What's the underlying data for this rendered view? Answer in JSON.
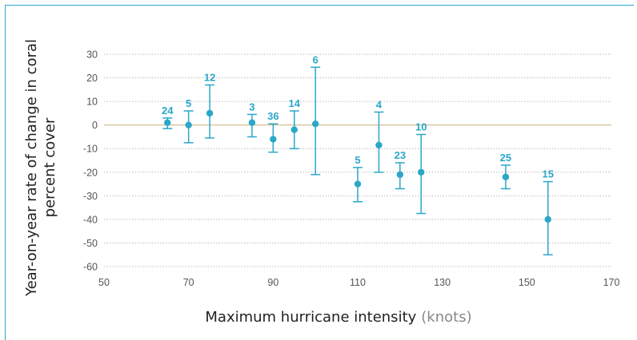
{
  "chart_data": {
    "type": "scatter",
    "xlabel": "Maximum hurricane intensity",
    "xlabel_unit": "(knots)",
    "ylabel_line1": "Year-on-year rate of change in coral",
    "ylabel_line2": "percent cover",
    "xlim": [
      50,
      170
    ],
    "ylim": [
      -60,
      30
    ],
    "x_ticks": [
      50,
      70,
      90,
      110,
      130,
      150,
      170
    ],
    "y_ticks": [
      30,
      20,
      10,
      0,
      -10,
      -20,
      -30,
      -40,
      -50,
      -60
    ],
    "grid": "horizontal dotted",
    "colors": {
      "series": "#2aa7c9",
      "grid": "#bbbbbb",
      "zero_line": "#c9b27a"
    },
    "points": [
      {
        "x": 65,
        "y": 1,
        "low": -1.5,
        "high": 3,
        "n": "24"
      },
      {
        "x": 70,
        "y": 0,
        "low": -7.5,
        "high": 6,
        "n": "5"
      },
      {
        "x": 75,
        "y": 5,
        "low": -5.5,
        "high": 17,
        "n": "12"
      },
      {
        "x": 85,
        "y": 1,
        "low": -5,
        "high": 4.5,
        "n": "3"
      },
      {
        "x": 90,
        "y": -6,
        "low": -11.5,
        "high": 0.5,
        "n": "36"
      },
      {
        "x": 95,
        "y": -2,
        "low": -10,
        "high": 6,
        "n": "14"
      },
      {
        "x": 100,
        "y": 0.5,
        "low": -21,
        "high": 24.5,
        "n": "6"
      },
      {
        "x": 110,
        "y": -25,
        "low": -32.5,
        "high": -18,
        "n": "5"
      },
      {
        "x": 115,
        "y": -8.5,
        "low": -20,
        "high": 5.5,
        "n": "4"
      },
      {
        "x": 120,
        "y": -21,
        "low": -27,
        "high": -16,
        "n": "23"
      },
      {
        "x": 125,
        "y": -20,
        "low": -37.5,
        "high": -4,
        "n": "10"
      },
      {
        "x": 145,
        "y": -22,
        "low": -27,
        "high": -17,
        "n": "25"
      },
      {
        "x": 155,
        "y": -40,
        "low": -55,
        "high": -24,
        "n": "15"
      }
    ]
  }
}
